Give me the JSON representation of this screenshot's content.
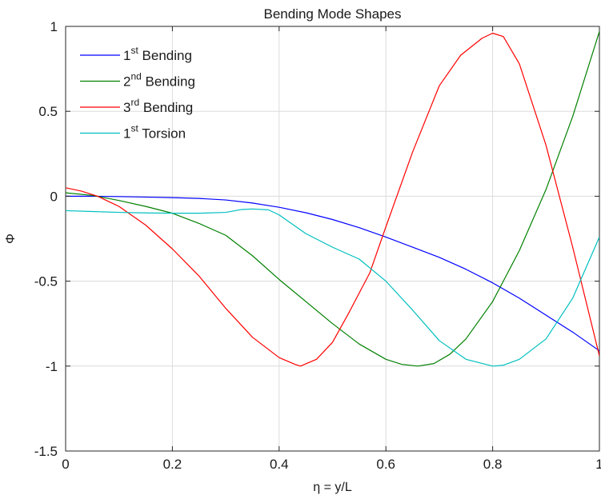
{
  "chart_data": {
    "type": "line",
    "title": "Bending Mode Shapes",
    "xlabel": "η = y/L",
    "ylabel": "Φ",
    "xlim": [
      0,
      1
    ],
    "ylim": [
      -1.5,
      1
    ],
    "xticks": [
      0,
      0.2,
      0.4,
      0.6,
      0.8,
      1
    ],
    "xtick_labels": [
      "0",
      "0.2",
      "0.4",
      "0.6",
      "0.8",
      "1"
    ],
    "yticks": [
      -1.5,
      -1,
      -0.5,
      0,
      0.5,
      1
    ],
    "ytick_labels": [
      "-1.5",
      "-1",
      "-0.5",
      "0",
      "0.5",
      "1"
    ],
    "grid": true,
    "legend_position": "top-left",
    "series": [
      {
        "name_base": "1",
        "name_sup": "st",
        "name_rest": " Bending",
        "color": "#0000ff",
        "x": [
          0,
          0.05,
          0.1,
          0.15,
          0.2,
          0.25,
          0.3,
          0.35,
          0.4,
          0.45,
          0.5,
          0.55,
          0.6,
          0.65,
          0.7,
          0.75,
          0.8,
          0.85,
          0.9,
          0.95,
          1.0
        ],
        "y": [
          0,
          0,
          -0.002,
          -0.005,
          -0.008,
          -0.013,
          -0.022,
          -0.04,
          -0.065,
          -0.097,
          -0.137,
          -0.185,
          -0.24,
          -0.3,
          -0.36,
          -0.43,
          -0.51,
          -0.6,
          -0.7,
          -0.8,
          -0.91
        ]
      },
      {
        "name_base": "2",
        "name_sup": "nd",
        "name_rest": " Bending",
        "color": "#008000",
        "x": [
          0,
          0.05,
          0.1,
          0.15,
          0.2,
          0.25,
          0.3,
          0.35,
          0.4,
          0.45,
          0.5,
          0.55,
          0.6,
          0.63,
          0.66,
          0.69,
          0.72,
          0.75,
          0.8,
          0.85,
          0.9,
          0.95,
          1.0
        ],
        "y": [
          0.02,
          0.005,
          -0.025,
          -0.06,
          -0.1,
          -0.16,
          -0.23,
          -0.35,
          -0.49,
          -0.62,
          -0.75,
          -0.87,
          -0.96,
          -0.99,
          -1.0,
          -0.985,
          -0.93,
          -0.84,
          -0.62,
          -0.32,
          0.04,
          0.47,
          0.97
        ]
      },
      {
        "name_base": "3",
        "name_sup": "rd",
        "name_rest": " Bending",
        "color": "#ff0000",
        "x": [
          0,
          0.03,
          0.06,
          0.1,
          0.15,
          0.2,
          0.25,
          0.3,
          0.35,
          0.4,
          0.43,
          0.44,
          0.47,
          0.5,
          0.53,
          0.57,
          0.6,
          0.65,
          0.7,
          0.74,
          0.78,
          0.8,
          0.82,
          0.85,
          0.9,
          0.95,
          1.0
        ],
        "y": [
          0.05,
          0.03,
          0.0,
          -0.06,
          -0.17,
          -0.31,
          -0.47,
          -0.66,
          -0.83,
          -0.95,
          -0.99,
          -1.0,
          -0.96,
          -0.86,
          -0.69,
          -0.45,
          -0.18,
          0.26,
          0.65,
          0.83,
          0.93,
          0.96,
          0.94,
          0.78,
          0.3,
          -0.3,
          -0.94
        ]
      },
      {
        "name_base": "1",
        "name_sup": "st",
        "name_rest": " Torsion",
        "color": "#00bfbf",
        "x": [
          0,
          0.05,
          0.1,
          0.15,
          0.2,
          0.25,
          0.3,
          0.33,
          0.35,
          0.38,
          0.4,
          0.45,
          0.5,
          0.55,
          0.6,
          0.65,
          0.7,
          0.75,
          0.8,
          0.82,
          0.85,
          0.9,
          0.95,
          1.0
        ],
        "y": [
          -0.085,
          -0.09,
          -0.095,
          -0.098,
          -0.1,
          -0.1,
          -0.095,
          -0.078,
          -0.075,
          -0.08,
          -0.11,
          -0.22,
          -0.3,
          -0.37,
          -0.5,
          -0.67,
          -0.85,
          -0.96,
          -1.0,
          -0.995,
          -0.96,
          -0.84,
          -0.6,
          -0.24
        ]
      }
    ]
  }
}
